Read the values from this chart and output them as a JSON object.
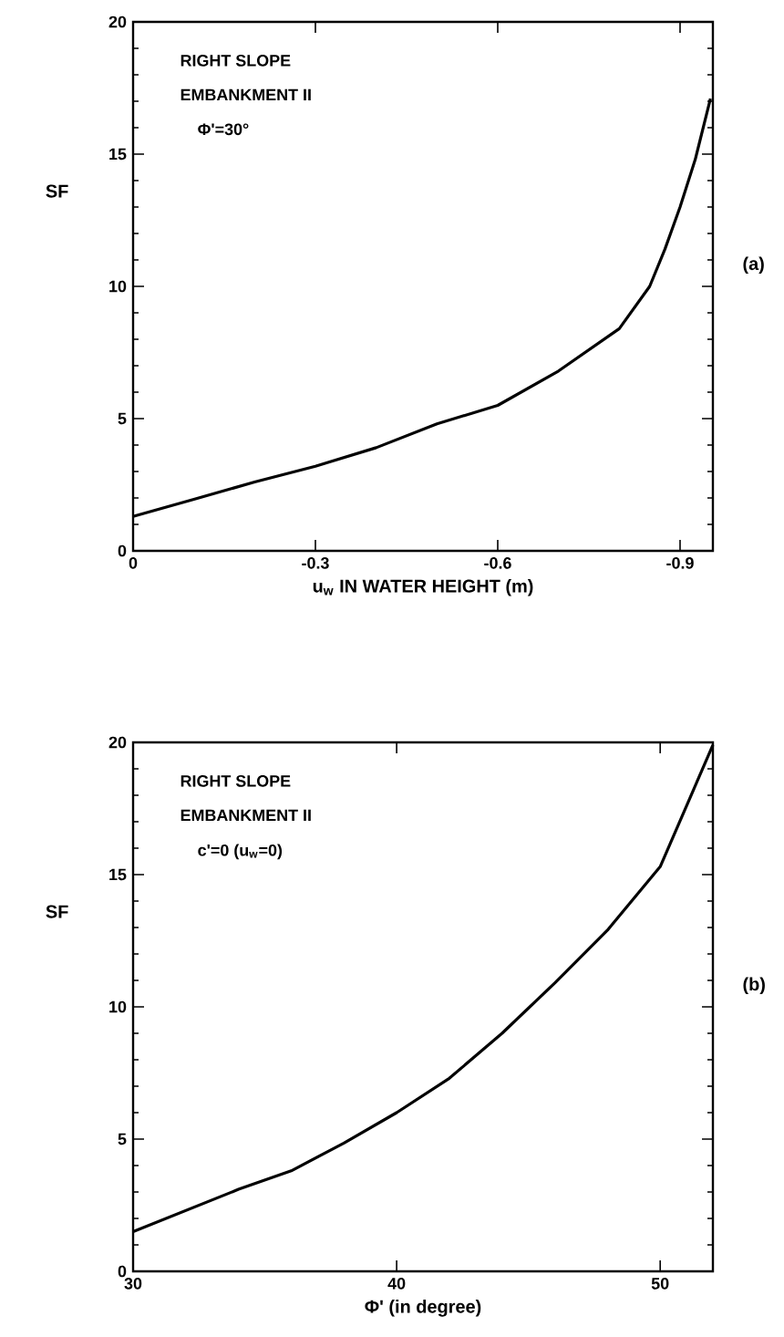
{
  "chart_data": [
    {
      "type": "line",
      "xlabel": "u$_{w}$ IN WATER HEIGHT (m)",
      "ylabel": "SF",
      "annotations": [
        "RIGHT SLOPE",
        "EMBANKMENT II",
        "Φ'=30°",
        "(a)"
      ],
      "xlim": [
        0,
        -0.954
      ],
      "ylim": [
        0,
        20
      ],
      "xticks": [
        0,
        -0.3,
        -0.6,
        -0.9
      ],
      "yticks": [
        0,
        5,
        10,
        15,
        20
      ],
      "series": [
        {
          "color": "#000000",
          "x": [
            0,
            -0.1,
            -0.2,
            -0.3,
            -0.4,
            -0.5,
            -0.6,
            -0.7,
            -0.8,
            -0.85,
            -0.875,
            -0.9,
            -0.925,
            -0.95
          ],
          "values": [
            1.3,
            1.95,
            2.6,
            3.2,
            3.9,
            4.8,
            5.5,
            6.8,
            8.4,
            10,
            11.4,
            13,
            14.8,
            17.1
          ]
        }
      ]
    },
    {
      "type": "line",
      "xlabel": "Φ'  (in degree)",
      "ylabel": "SF",
      "annotations": [
        "RIGHT SLOPE",
        "EMBANKMENT II",
        "c'=0  (u$_{w}$=0)",
        "(b)"
      ],
      "xlim": [
        30,
        52
      ],
      "ylim": [
        0,
        20
      ],
      "xticks": [
        30,
        40,
        50
      ],
      "yticks": [
        0,
        5,
        10,
        15,
        20
      ],
      "series": [
        {
          "color": "#000000",
          "x": [
            30,
            32,
            34,
            36,
            38,
            40,
            42,
            44,
            46,
            48,
            50,
            52
          ],
          "values": [
            1.5,
            2.3,
            3.1,
            3.8,
            4.85,
            6.0,
            7.3,
            9.0,
            10.9,
            12.9,
            15.3,
            19.9
          ]
        }
      ]
    }
  ]
}
